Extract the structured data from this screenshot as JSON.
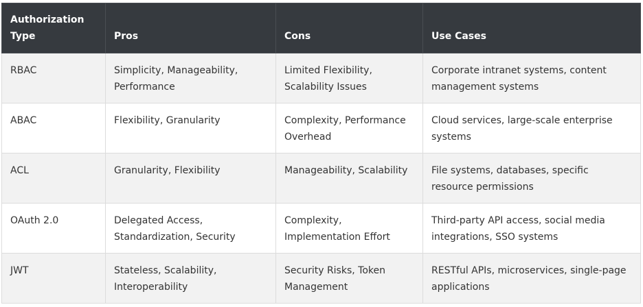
{
  "table": {
    "header": [
      "Authorization Type",
      "Pros",
      "Cons",
      "Use Cases"
    ],
    "rows": [
      [
        "RBAC",
        "Simplicity, Manageability, Performance",
        "Limited Flexibility, Scalability Issues",
        "Corporate intranet systems, content management systems"
      ],
      [
        "ABAC",
        "Flexibility, Granularity",
        "Complexity, Performance Overhead",
        "Cloud services, large-scale enterprise systems"
      ],
      [
        "ACL",
        "Granularity, Flexibility",
        "Manageability, Scalability",
        "File systems, databases, specific resource permissions"
      ],
      [
        "OAuth 2.0",
        "Delegated Access, Standardization, Security",
        "Complexity, Implementation Effort",
        "Third-party API access, social media integrations, SSO systems"
      ],
      [
        "JWT",
        "Stateless, Scalability, Interoperability",
        "Security Risks, Token Management",
        "RESTful APIs, microservices, single-page applications"
      ]
    ]
  }
}
